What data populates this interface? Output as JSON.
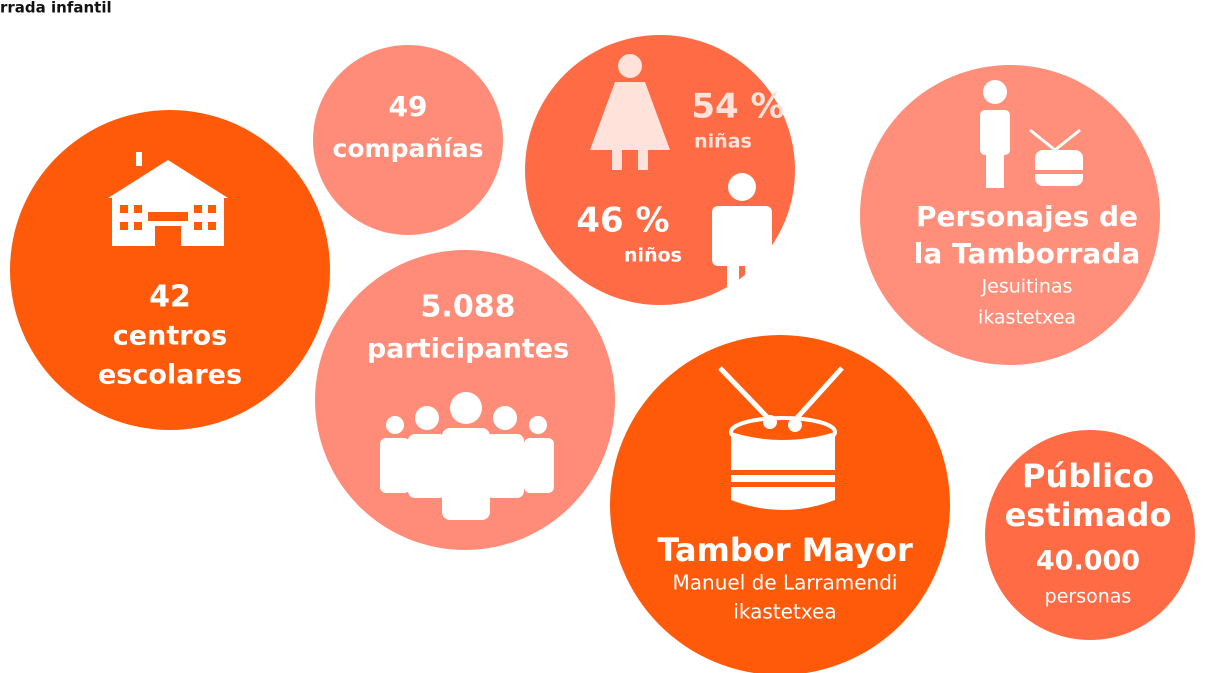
{
  "header": {
    "title": "rrada infantil"
  },
  "circles": [
    {
      "lines": [
        "42",
        "centros",
        "escolares"
      ]
    },
    {
      "lines": [
        "49",
        "compañías"
      ]
    },
    {
      "lines": [
        "54 %",
        "niñas",
        "46 %",
        "niños"
      ]
    },
    {
      "lines": [
        "Personajes de",
        "la Tamborrada",
        "Jesuitinas",
        "ikastetxea"
      ]
    },
    {
      "lines": [
        "5.088",
        "participantes"
      ]
    },
    {
      "lines": [
        "Tambor Mayor",
        "Manuel de Larramendi",
        "ikastetxea"
      ]
    },
    {
      "lines": [
        "Público",
        "estimado",
        "40.000",
        "personas"
      ]
    }
  ]
}
